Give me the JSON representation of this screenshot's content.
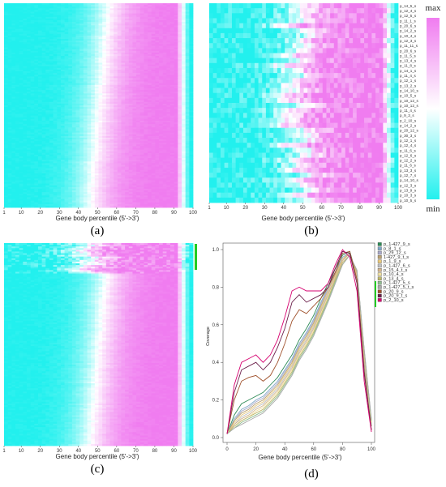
{
  "chart_data": [
    {
      "type": "heatmap",
      "panel_label": "(a)",
      "xlabel": "Gene body percentile (5'->3')",
      "x_ticks": [
        1,
        10,
        20,
        30,
        40,
        50,
        60,
        70,
        80,
        90,
        100
      ],
      "colormap": {
        "min_color": "#22f0ee",
        "mid_color": "#ffffff",
        "max_color": "#f07cf0"
      },
      "row_labels": [],
      "legend": "none"
    },
    {
      "type": "heatmap",
      "panel_label": "(b)",
      "xlabel": "Gene body percentile (5'->3')",
      "x_ticks": [
        1,
        10,
        20,
        30,
        40,
        50,
        60,
        70,
        80,
        90,
        100
      ],
      "colormap": {
        "min_color": "#22f0ee",
        "mid_color": "#ffffff",
        "max_color": "#f07cf0"
      },
      "colorbar": {
        "max_label": "max",
        "min_label": "min"
      },
      "row_labels": [
        "p_14_5_s",
        "p_12_4_s",
        "p_12_5_s",
        "p_11_1_s",
        "p_20_6_s",
        "p_14_2_s",
        "p_10_4_s",
        "p_12_3_s",
        "p_11_11_s",
        "p_20_6_s",
        "p_11_5_s",
        "p_13_4_s",
        "p_11_8_s",
        "p_14_1_s",
        "p_11_4_s",
        "p_12_1_s",
        "p_13_2_s",
        "p_14_10_s",
        "p_10_5_s",
        "p_10_12_s",
        "p_10_12_s",
        "p_11_4_s",
        "p_9_3_s",
        "p_2_10_s",
        "p_14_2_s",
        "p_20_12_s",
        "p_30_3_s",
        "p_12_1_s",
        "p_12_4_s",
        "p_11_6_s",
        "p_12_6_s",
        "p_12_2_s",
        "p_11_6_s",
        "p_13_3_s",
        "p_12_7_s",
        "p_14_10_s",
        "p_12_3_s",
        "p_13_9_s",
        "p_10_3_s",
        "p_10_5_s"
      ]
    },
    {
      "type": "heatmap",
      "panel_label": "(c)",
      "xlabel": "Gene body percentile (5'->3')",
      "x_ticks": [
        1,
        10,
        20,
        30,
        40,
        50,
        60,
        70,
        80,
        90,
        100
      ],
      "colormap": {
        "min_color": "#22f0ee",
        "mid_color": "#ffffff",
        "max_color": "#f07cf0"
      },
      "highlight_marker_color": "#22cc22",
      "legend": "none"
    },
    {
      "type": "line",
      "panel_label": "(d)",
      "xlabel": "Gene body percentile (5'->3')",
      "ylabel": "Coverage",
      "xlim": [
        0,
        100
      ],
      "ylim": [
        0,
        1
      ],
      "x_ticks": [
        0,
        20,
        40,
        60,
        80,
        100
      ],
      "y_ticks": [
        0.0,
        0.2,
        0.4,
        0.6,
        0.8,
        1.0
      ],
      "legend_position": "right",
      "x": [
        0,
        5,
        10,
        15,
        20,
        25,
        30,
        35,
        40,
        45,
        50,
        55,
        60,
        65,
        70,
        75,
        80,
        85,
        90,
        95,
        100
      ],
      "series": [
        {
          "name": "p_1-427_9_s",
          "color": "#2e8b57",
          "values": [
            0.02,
            0.12,
            0.18,
            0.2,
            0.22,
            0.24,
            0.28,
            0.32,
            0.38,
            0.44,
            0.52,
            0.58,
            0.65,
            0.74,
            0.82,
            0.9,
            0.97,
            0.99,
            0.86,
            0.42,
            0.06
          ]
        },
        {
          "name": "p_8_1_s",
          "color": "#7fa8c8",
          "values": [
            0.02,
            0.1,
            0.15,
            0.17,
            0.2,
            0.22,
            0.26,
            0.3,
            0.36,
            0.42,
            0.5,
            0.56,
            0.63,
            0.72,
            0.8,
            0.88,
            0.96,
            0.98,
            0.85,
            0.4,
            0.06
          ]
        },
        {
          "name": "p_29_12_s",
          "color": "#a9a9c9",
          "values": [
            0.02,
            0.09,
            0.14,
            0.16,
            0.19,
            0.21,
            0.25,
            0.29,
            0.35,
            0.41,
            0.49,
            0.55,
            0.62,
            0.71,
            0.79,
            0.87,
            0.95,
            0.98,
            0.85,
            0.4,
            0.06
          ]
        },
        {
          "name": "1-427_9_t_s",
          "color": "#b8a070",
          "values": [
            0.02,
            0.09,
            0.13,
            0.15,
            0.18,
            0.2,
            0.24,
            0.28,
            0.34,
            0.4,
            0.48,
            0.54,
            0.61,
            0.7,
            0.78,
            0.87,
            0.95,
            0.98,
            0.86,
            0.42,
            0.06
          ]
        },
        {
          "name": "p_1_9_s",
          "color": "#e8c87a",
          "values": [
            0.02,
            0.08,
            0.12,
            0.14,
            0.17,
            0.19,
            0.23,
            0.27,
            0.33,
            0.39,
            0.47,
            0.53,
            0.6,
            0.69,
            0.78,
            0.86,
            0.95,
            0.98,
            0.86,
            0.43,
            0.07
          ]
        },
        {
          "name": "p_1-427_6_s",
          "color": "#c0c0c0",
          "values": [
            0.02,
            0.07,
            0.11,
            0.13,
            0.16,
            0.18,
            0.22,
            0.26,
            0.32,
            0.38,
            0.46,
            0.52,
            0.59,
            0.68,
            0.77,
            0.85,
            0.94,
            0.98,
            0.87,
            0.44,
            0.07
          ]
        },
        {
          "name": "p_15_4_t_s",
          "color": "#d2b48c",
          "values": [
            0.02,
            0.07,
            0.1,
            0.12,
            0.15,
            0.17,
            0.21,
            0.25,
            0.31,
            0.37,
            0.45,
            0.51,
            0.58,
            0.67,
            0.76,
            0.85,
            0.94,
            0.98,
            0.87,
            0.44,
            0.08
          ]
        },
        {
          "name": "p_10_4_s",
          "color": "#f0e0a0",
          "values": [
            0.02,
            0.06,
            0.09,
            0.11,
            0.14,
            0.16,
            0.2,
            0.24,
            0.3,
            0.36,
            0.44,
            0.5,
            0.57,
            0.66,
            0.75,
            0.84,
            0.93,
            0.97,
            0.88,
            0.45,
            0.08
          ]
        },
        {
          "name": "p_13_4_s",
          "color": "#bdb76b",
          "values": [
            0.02,
            0.06,
            0.09,
            0.11,
            0.13,
            0.15,
            0.19,
            0.23,
            0.29,
            0.35,
            0.43,
            0.49,
            0.56,
            0.65,
            0.74,
            0.84,
            0.93,
            0.97,
            0.88,
            0.46,
            0.09
          ]
        },
        {
          "name": "p_1-427_5_s",
          "color": "#8fbc8f",
          "values": [
            0.02,
            0.05,
            0.08,
            0.1,
            0.12,
            0.14,
            0.18,
            0.22,
            0.28,
            0.34,
            0.42,
            0.48,
            0.55,
            0.64,
            0.73,
            0.83,
            0.92,
            0.97,
            0.89,
            0.47,
            0.09
          ]
        },
        {
          "name": "p_1-427_5_t_s",
          "color": "#aaaaaa",
          "values": [
            0.02,
            0.05,
            0.07,
            0.09,
            0.11,
            0.13,
            0.17,
            0.21,
            0.27,
            0.33,
            0.41,
            0.47,
            0.54,
            0.63,
            0.72,
            0.82,
            0.92,
            0.97,
            0.89,
            0.47,
            0.1
          ]
        },
        {
          "name": "p_20_9_s",
          "color": "#a0522d",
          "values": [
            0.02,
            0.2,
            0.3,
            0.32,
            0.33,
            0.3,
            0.33,
            0.4,
            0.5,
            0.62,
            0.68,
            0.66,
            0.7,
            0.74,
            0.8,
            0.88,
            0.98,
            0.99,
            0.84,
            0.36,
            0.04
          ]
        },
        {
          "name": "p_20_9_t_s",
          "color": "#6b1f4a",
          "values": [
            0.02,
            0.24,
            0.36,
            0.38,
            0.4,
            0.36,
            0.4,
            0.48,
            0.58,
            0.72,
            0.76,
            0.72,
            0.74,
            0.76,
            0.8,
            0.9,
            0.99,
            0.98,
            0.82,
            0.34,
            0.04
          ]
        },
        {
          "name": "p_2_10_s",
          "color": "#d6006f",
          "values": [
            0.02,
            0.28,
            0.4,
            0.42,
            0.44,
            0.4,
            0.44,
            0.52,
            0.64,
            0.78,
            0.8,
            0.78,
            0.78,
            0.78,
            0.82,
            0.92,
            1.0,
            0.96,
            0.78,
            0.3,
            0.03
          ]
        }
      ]
    }
  ]
}
